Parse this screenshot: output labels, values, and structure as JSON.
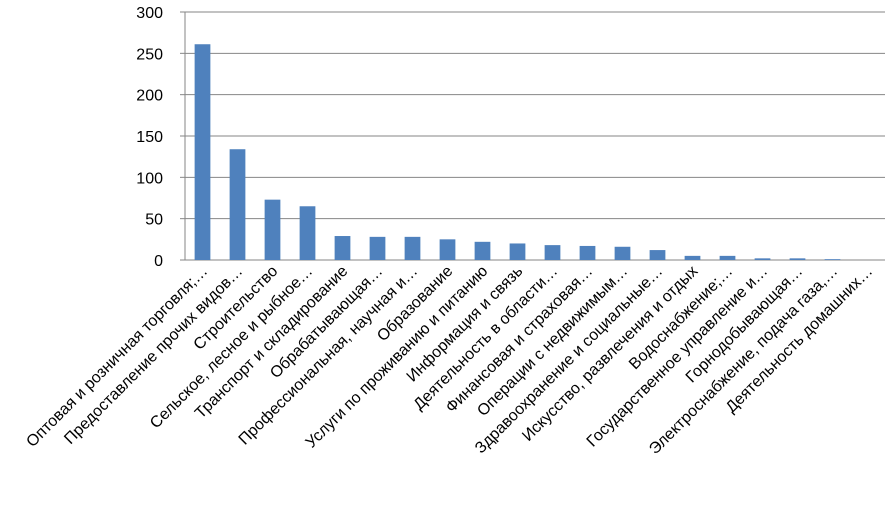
{
  "chart_data": {
    "type": "bar",
    "categories": [
      "Оптовая и розничная торговля;…",
      "Предоставление прочих видов…",
      "Строительство",
      "Сельское, лесное и рыбное…",
      "Транспорт и складирование",
      "Обрабатывающая…",
      "Профессиональная, научная и…",
      "Образование",
      "Услуги по проживанию и питанию",
      "Информация и связь",
      "Деятельность в области…",
      "Финансовая и страховая…",
      "Операции с недвижимым…",
      "Здравоохранение и социальные…",
      "Искусство, развлечения и отдых",
      "Водоснабжение;…",
      "Государственное управление и…",
      "Горнодобывающая…",
      "Электроснабжение, подача газа,…",
      "Деятельность домашних…"
    ],
    "values": [
      261,
      134,
      73,
      65,
      29,
      28,
      28,
      25,
      22,
      20,
      18,
      17,
      16,
      12,
      5,
      5,
      2,
      2,
      1,
      0
    ],
    "color": "#4f81bd",
    "ylim": [
      0,
      300
    ],
    "yticks": [
      0,
      50,
      100,
      150,
      200,
      250,
      300
    ],
    "grid": true
  }
}
